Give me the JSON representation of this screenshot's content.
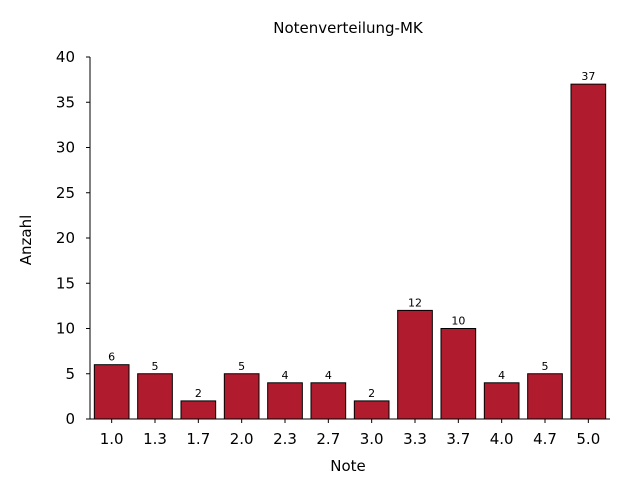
{
  "chart_data": {
    "type": "bar",
    "title": "Notenverteilung-MK",
    "xlabel": "Note",
    "ylabel": "Anzahl",
    "categories": [
      "1.0",
      "1.3",
      "1.7",
      "2.0",
      "2.3",
      "2.7",
      "3.0",
      "3.3",
      "3.7",
      "4.0",
      "4.7",
      "5.0"
    ],
    "values": [
      6,
      5,
      2,
      5,
      4,
      4,
      2,
      12,
      10,
      4,
      5,
      37
    ],
    "ylim": [
      0,
      40
    ],
    "yticks": [
      "0",
      "5",
      "10",
      "15",
      "20",
      "25",
      "30",
      "35",
      "40"
    ],
    "grid": false,
    "legend": "none",
    "bar_color": "#b01c2e"
  }
}
